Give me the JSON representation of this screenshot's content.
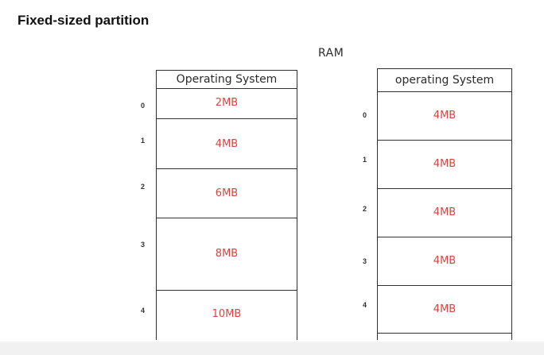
{
  "title": "Fixed-sized partition",
  "ram_label": "RAM",
  "left": {
    "os_label": "Operating System",
    "partitions": [
      {
        "index": "0",
        "size": "2MB"
      },
      {
        "index": "1",
        "size": "4MB"
      },
      {
        "index": "2",
        "size": "6MB"
      },
      {
        "index": "3",
        "size": "8MB"
      },
      {
        "index": "4",
        "size": "10MB"
      }
    ]
  },
  "right": {
    "os_label": "operating System",
    "partitions": [
      {
        "index": "0",
        "size": "4MB"
      },
      {
        "index": "1",
        "size": "4MB"
      },
      {
        "index": "2",
        "size": "4MB"
      },
      {
        "index": "3",
        "size": "4MB"
      },
      {
        "index": "4",
        "size": "4MB"
      }
    ]
  },
  "colors": {
    "size_text": "#d64541",
    "lines": "#2f2f2f"
  }
}
